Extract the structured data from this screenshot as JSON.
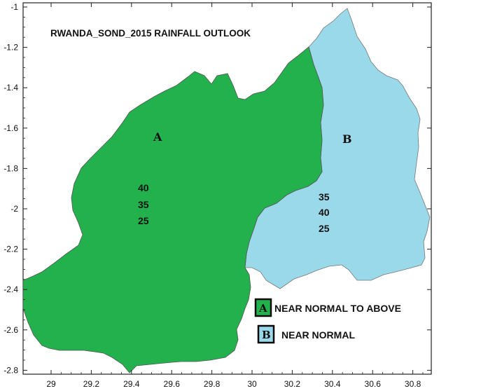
{
  "title": "RWANDA_SOND_2015 RAINFALL OUTLOOK",
  "axes": {
    "x_ticks": [
      "29",
      "29.2",
      "29.4",
      "29.6",
      "29.8",
      "30",
      "30.2",
      "30.4",
      "30.6",
      "30.8"
    ],
    "y_ticks": [
      "-1",
      "-1.2",
      "-1.4",
      "-1.6",
      "-1.8",
      "-2",
      "-2.2",
      "-2.4",
      "-2.6",
      "-2.8"
    ]
  },
  "zones": [
    {
      "letter": "A",
      "color": "#22b14c",
      "probabilities": [
        "40",
        "35",
        "25"
      ]
    },
    {
      "letter": "B",
      "color": "#99d9ea",
      "probabilities": [
        "35",
        "40",
        "25"
      ]
    }
  ],
  "legend": [
    {
      "letter": "A",
      "label": "NEAR NORMAL TO ABOVE",
      "color": "#22b14c"
    },
    {
      "letter": "B",
      "label": "NEAR NORMAL",
      "color": "#99d9ea"
    }
  ]
}
